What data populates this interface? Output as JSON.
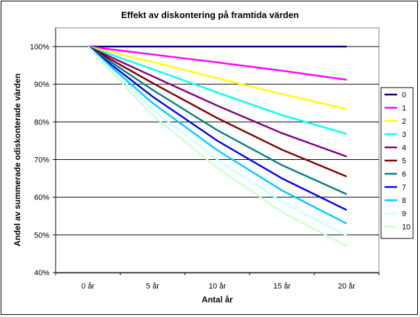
{
  "chart_data": {
    "type": "line",
    "title": "Effekt av diskontering på framtida värden",
    "xlabel": "Antal år",
    "ylabel": "Andel av summerade odiskonterade värden",
    "categories": [
      "0 år",
      "5 år",
      "10 år",
      "15 år",
      "20 år"
    ],
    "x": [
      0,
      5,
      10,
      15,
      20
    ],
    "ylim": [
      0.4,
      1.0
    ],
    "yticks": [
      "40%",
      "50%",
      "60%",
      "70%",
      "80%",
      "90%",
      "100%"
    ],
    "grid": "horizontal",
    "legend_position": "right",
    "series": [
      {
        "name": "0",
        "color": "#000080",
        "values": [
          1.0,
          1.0,
          1.0,
          1.0,
          1.0
        ]
      },
      {
        "name": "1",
        "color": "#ff00ff",
        "values": [
          1.0,
          0.979,
          0.958,
          0.936,
          0.912
        ]
      },
      {
        "name": "2",
        "color": "#ffff00",
        "values": [
          1.0,
          0.959,
          0.916,
          0.874,
          0.834
        ]
      },
      {
        "name": "3",
        "color": "#00ffff",
        "values": [
          1.0,
          0.94,
          0.878,
          0.818,
          0.768
        ]
      },
      {
        "name": "4",
        "color": "#800080",
        "values": [
          1.0,
          0.921,
          0.843,
          0.77,
          0.708
        ]
      },
      {
        "name": "5",
        "color": "#800000",
        "values": [
          1.0,
          0.903,
          0.81,
          0.726,
          0.655
        ]
      },
      {
        "name": "6",
        "color": "#008080",
        "values": [
          1.0,
          0.885,
          0.778,
          0.685,
          0.608
        ]
      },
      {
        "name": "7",
        "color": "#0000ff",
        "values": [
          1.0,
          0.867,
          0.75,
          0.65,
          0.566
        ]
      },
      {
        "name": "8",
        "color": "#00ccff",
        "values": [
          1.0,
          0.85,
          0.725,
          0.618,
          0.53
        ]
      },
      {
        "name": "9",
        "color": "#ccffff",
        "values": [
          1.0,
          0.833,
          0.7,
          0.588,
          0.498
        ]
      },
      {
        "name": "10",
        "color": "#ccffcc",
        "values": [
          1.0,
          0.817,
          0.678,
          0.561,
          0.47
        ]
      }
    ]
  }
}
